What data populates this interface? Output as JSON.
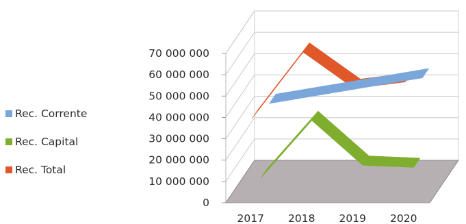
{
  "chart_data": {
    "type": "line",
    "style": "3d-ribbon",
    "categories": [
      "2017",
      "2018",
      "2019",
      "2020"
    ],
    "ylim": [
      0,
      70000000
    ],
    "y_ticks": [
      "0",
      "10 000 000",
      "20 000 000",
      "30 000 000",
      "40 000 000",
      "50 000 000",
      "60 000 000",
      "70 000 000"
    ],
    "grid": true,
    "legend_position": "left",
    "series": [
      {
        "name": "Rec. Corrente",
        "color": "#7aa6da",
        "values": [
          34000000,
          38000000,
          42000000,
          46000000
        ]
      },
      {
        "name": "Rec. Capital",
        "color": "#7fae2e",
        "values": [
          5000000,
          32000000,
          11000000,
          10000000
        ]
      },
      {
        "name": "Rec. Total",
        "color": "#e0572a",
        "values": [
          39000000,
          70000000,
          53000000,
          56000000
        ]
      }
    ]
  }
}
